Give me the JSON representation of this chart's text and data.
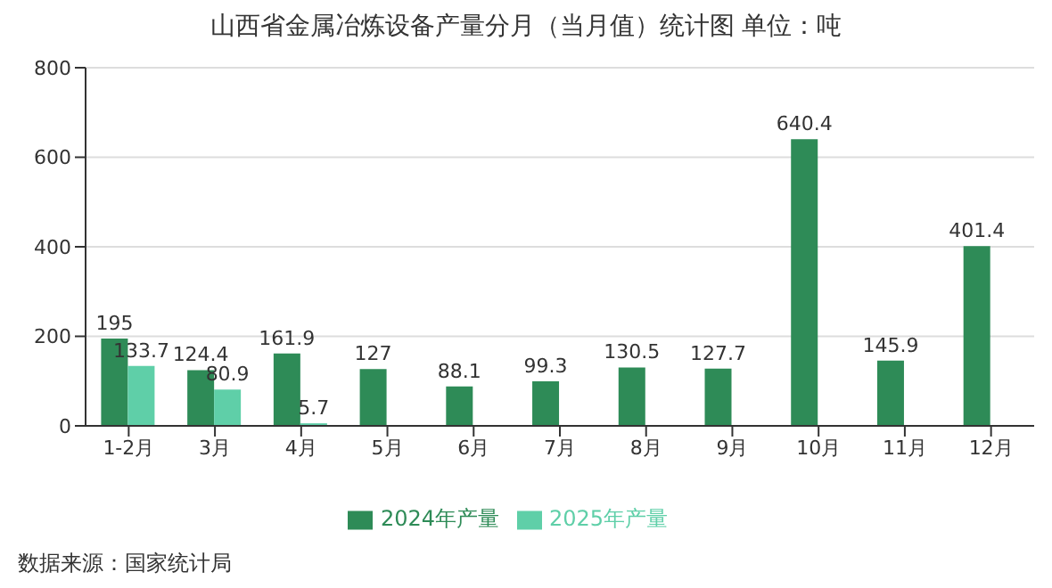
{
  "chart_data": {
    "type": "bar",
    "title": "山西省金属冶炼设备产量分月（当月值）统计图 单位：吨",
    "categories": [
      "1-2月",
      "3月",
      "4月",
      "5月",
      "6月",
      "7月",
      "8月",
      "9月",
      "10月",
      "11月",
      "12月"
    ],
    "series": [
      {
        "name": "2024年产量",
        "color": "#2e8b57",
        "values": [
          195,
          124.4,
          161.9,
          127,
          88.1,
          99.3,
          130.5,
          127.7,
          640.4,
          145.9,
          401.4
        ]
      },
      {
        "name": "2025年产量",
        "color": "#5fcfa8",
        "values": [
          133.7,
          80.9,
          5.7,
          null,
          null,
          null,
          null,
          null,
          null,
          null,
          null
        ]
      }
    ],
    "ylim": [
      0,
      800
    ],
    "yticks": [
      0,
      200,
      400,
      600,
      800
    ],
    "grid": "y",
    "legend": "bottom",
    "data_labels": true,
    "annotations": [
      "数据来源：国家统计局"
    ]
  }
}
